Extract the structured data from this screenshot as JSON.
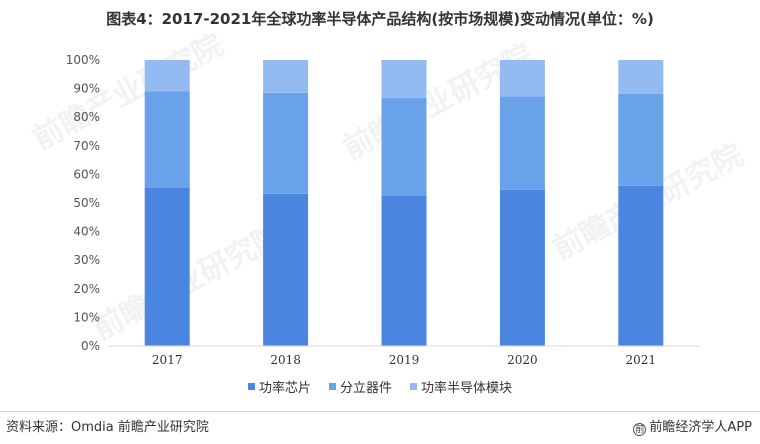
{
  "title": "图表4：2017-2021年全球功率半导体产品结构(按市场规模)变动情况(单位：%)",
  "source": "资料来源：Omdia 前瞻产业研究院",
  "brand": "前瞻经济学人APP",
  "watermark": "前瞻产业研究院",
  "colors": {
    "series1": "#4a86e0",
    "series2": "#6aa2ea",
    "series3": "#93bbf2",
    "axis": "#d9d9d9"
  },
  "chart_data": {
    "type": "bar",
    "stacked": true,
    "categories": [
      "2017",
      "2018",
      "2019",
      "2020",
      "2021"
    ],
    "series": [
      {
        "name": "功率芯片",
        "values": [
          55.5,
          53.2,
          52.6,
          54.6,
          56.0
        ]
      },
      {
        "name": "分立器件",
        "values": [
          33.6,
          35.3,
          34.2,
          32.7,
          32.2
        ]
      },
      {
        "name": "功率半导体模块",
        "values": [
          10.9,
          11.5,
          13.2,
          12.7,
          11.8
        ]
      }
    ],
    "yticks": [
      "0%",
      "10%",
      "20%",
      "30%",
      "40%",
      "50%",
      "60%",
      "70%",
      "80%",
      "90%",
      "100%"
    ],
    "ylim": [
      0,
      100
    ],
    "grid": false,
    "legend": "bottom"
  }
}
